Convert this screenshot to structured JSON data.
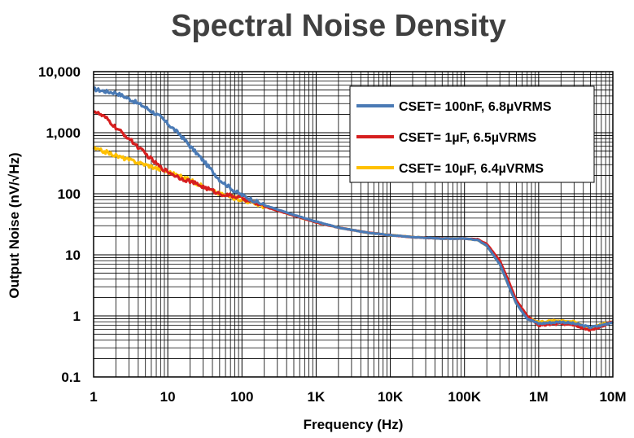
{
  "chart_data": {
    "type": "line",
    "title": "Spectral Noise Density",
    "xlabel": "Frequency (Hz)",
    "ylabel": "Output Noise (nV/√Hz)",
    "xscale": "log",
    "yscale": "log",
    "xlim": [
      1,
      10000000
    ],
    "ylim": [
      0.1,
      10000
    ],
    "grid": true,
    "legend_position": "top-right",
    "x_ticks": [
      {
        "value": 1,
        "label": "1"
      },
      {
        "value": 10,
        "label": "10"
      },
      {
        "value": 100,
        "label": "100"
      },
      {
        "value": 1000,
        "label": "1K"
      },
      {
        "value": 10000,
        "label": "10K"
      },
      {
        "value": 100000,
        "label": "100K"
      },
      {
        "value": 1000000,
        "label": "1M"
      },
      {
        "value": 10000000,
        "label": "10M"
      }
    ],
    "y_ticks": [
      {
        "value": 0.1,
        "label": "0.1"
      },
      {
        "value": 1,
        "label": "1"
      },
      {
        "value": 10,
        "label": "10"
      },
      {
        "value": 100,
        "label": "100"
      },
      {
        "value": 1000,
        "label": "1,000"
      },
      {
        "value": 10000,
        "label": "10,000"
      }
    ],
    "series": [
      {
        "name": "CSET= 100nF, 6.8µVRMS",
        "color": "#4a7ab5",
        "x": [
          1,
          1.5,
          2,
          3,
          5,
          8,
          10,
          15,
          20,
          30,
          50,
          80,
          100,
          200,
          500,
          1000,
          2000,
          5000,
          10000,
          20000,
          50000,
          100000,
          150000,
          200000,
          300000,
          400000,
          500000,
          700000,
          1000000,
          2000000,
          3000000,
          5000000,
          7000000,
          10000000
        ],
        "y": [
          5200,
          4700,
          4500,
          3600,
          2600,
          1800,
          1400,
          900,
          600,
          350,
          170,
          110,
          95,
          65,
          45,
          35,
          28,
          23,
          21,
          19.5,
          18.5,
          18.5,
          17.5,
          14,
          7,
          3,
          1.6,
          0.9,
          0.75,
          0.8,
          0.75,
          0.65,
          0.7,
          0.8
        ]
      },
      {
        "name": "CSET= 1µF, 6.5µVRMS",
        "color": "#d61f1f",
        "x": [
          1,
          1.5,
          2,
          3,
          5,
          8,
          10,
          15,
          20,
          30,
          50,
          80,
          100,
          200,
          500,
          1000,
          2000,
          5000,
          10000,
          20000,
          50000,
          100000,
          150000,
          200000,
          300000,
          400000,
          500000,
          700000,
          1000000,
          2000000,
          3000000,
          5000000,
          7000000,
          10000000
        ],
        "y": [
          2300,
          1700,
          1200,
          800,
          450,
          270,
          230,
          180,
          160,
          130,
          100,
          90,
          85,
          62,
          44,
          34,
          28,
          23,
          21,
          19.5,
          18.5,
          18.5,
          18,
          15,
          8,
          3.5,
          1.8,
          1.0,
          0.7,
          0.75,
          0.7,
          0.58,
          0.68,
          0.8
        ]
      },
      {
        "name": "CSET= 10µF, 6.4µVRMS",
        "color": "#ffc000",
        "x": [
          1,
          1.5,
          2,
          3,
          5,
          8,
          10,
          15,
          20,
          30,
          50,
          80,
          100,
          200,
          500,
          1000,
          2000,
          5000,
          10000,
          20000,
          50000,
          100000,
          150000,
          200000,
          300000,
          400000,
          500000,
          700000,
          1000000,
          2000000,
          3000000,
          5000000,
          7000000,
          10000000
        ],
        "y": [
          550,
          480,
          420,
          360,
          300,
          250,
          230,
          190,
          170,
          130,
          100,
          85,
          80,
          62,
          44,
          34,
          28,
          23,
          21,
          19.5,
          18.5,
          18.5,
          17.5,
          14,
          7,
          3,
          1.6,
          0.95,
          0.8,
          0.85,
          0.8,
          0.62,
          0.72,
          0.82
        ]
      }
    ]
  }
}
